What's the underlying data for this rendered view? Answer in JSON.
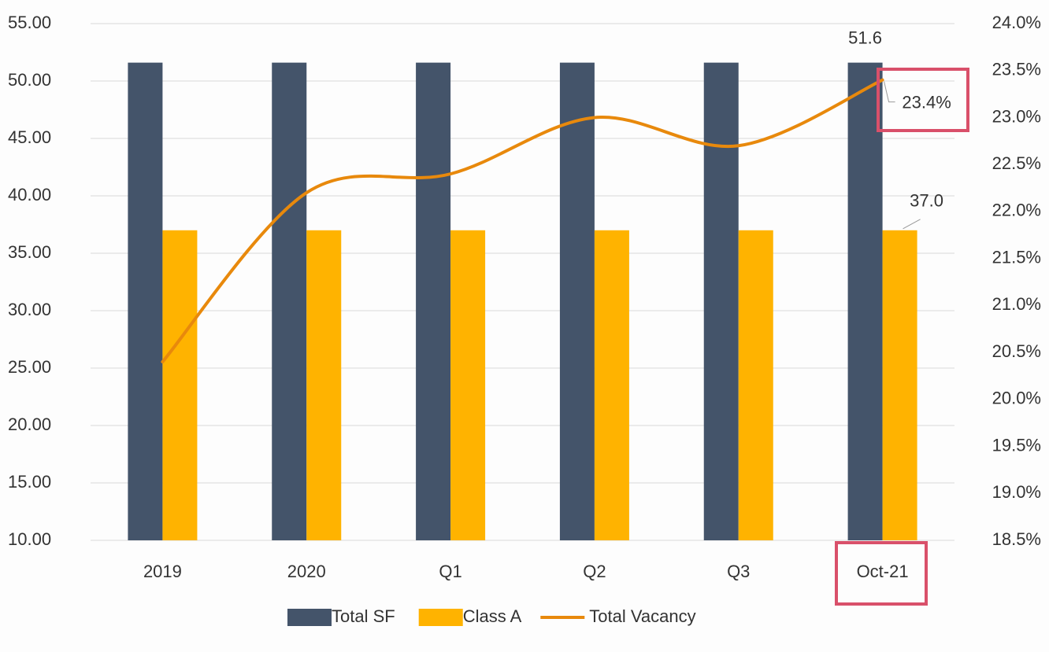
{
  "chart_data": {
    "type": "bar-line",
    "categories": [
      "2019",
      "2020",
      "Q1",
      "Q2",
      "Q3",
      "Oct-21"
    ],
    "series": [
      {
        "name": "Total SF",
        "color": "#44546a",
        "type": "bar",
        "values": [
          51.6,
          51.6,
          51.6,
          51.6,
          51.6,
          51.6
        ],
        "value_labels": [
          null,
          null,
          null,
          null,
          null,
          "51.6"
        ]
      },
      {
        "name": "Class A",
        "color": "#ffb300",
        "type": "bar",
        "values": [
          37.0,
          37.0,
          37.0,
          37.0,
          37.0,
          37.0
        ],
        "value_labels": [
          null,
          null,
          null,
          null,
          null,
          "37.0"
        ]
      },
      {
        "name": "Total Vacancy",
        "color": "#e8890c",
        "type": "line",
        "axis": "y2",
        "values": [
          20.4,
          22.2,
          22.4,
          23.0,
          22.7,
          23.4
        ],
        "value_labels": [
          null,
          null,
          null,
          null,
          null,
          "23.4%"
        ]
      }
    ],
    "ylim": [
      10,
      55
    ],
    "yticks": [
      {
        "value": 10,
        "label": "10.00"
      },
      {
        "value": 15,
        "label": "15.00"
      },
      {
        "value": 20,
        "label": "20.00"
      },
      {
        "value": 25,
        "label": "25.00"
      },
      {
        "value": 30,
        "label": "30.00"
      },
      {
        "value": 35,
        "label": "35.00"
      },
      {
        "value": 40,
        "label": "40.00"
      },
      {
        "value": 45,
        "label": "45.00"
      },
      {
        "value": 50,
        "label": "50.00"
      },
      {
        "value": 55,
        "label": "55.00"
      }
    ],
    "y2lim": [
      18.5,
      24.0
    ],
    "y2ticks": [
      {
        "value": 18.5,
        "label": "18.5%"
      },
      {
        "value": 19.0,
        "label": "19.0%"
      },
      {
        "value": 19.5,
        "label": "19.5%"
      },
      {
        "value": 20.0,
        "label": "20.0%"
      },
      {
        "value": 20.5,
        "label": "20.5%"
      },
      {
        "value": 21.0,
        "label": "21.0%"
      },
      {
        "value": 21.5,
        "label": "21.5%"
      },
      {
        "value": 22.0,
        "label": "22.0%"
      },
      {
        "value": 22.5,
        "label": "22.5%"
      },
      {
        "value": 23.0,
        "label": "23.0%"
      },
      {
        "value": 23.5,
        "label": "23.5%"
      },
      {
        "value": 24.0,
        "label": "24.0%"
      }
    ],
    "grid": true,
    "legend": "bottom"
  }
}
